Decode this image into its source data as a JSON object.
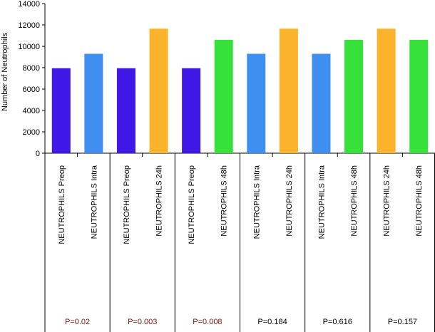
{
  "chart_data": {
    "type": "bar",
    "ylabel": "Number of Neutrophils",
    "ylim": [
      0,
      14000
    ],
    "yticks": [
      0,
      2000,
      4000,
      6000,
      8000,
      10000,
      12000,
      14000
    ],
    "bars": [
      {
        "label": "NEUTROPHILS Preop",
        "value": 7950,
        "color": "#3f17e6"
      },
      {
        "label": "NEUTROPHILS Intra",
        "value": 9300,
        "color": "#3f8ff0"
      },
      {
        "label": "NEUTROPHILS Preop",
        "value": 7950,
        "color": "#3f17e6"
      },
      {
        "label": "NEUTROPHILS 24h",
        "value": 11650,
        "color": "#fbb32c"
      },
      {
        "label": "NEUTROPHILS Preop",
        "value": 7950,
        "color": "#3f17e6"
      },
      {
        "label": "NEUTROPHILS 48h",
        "value": 10600,
        "color": "#36e23a"
      },
      {
        "label": "NEUTROPHILS Intra",
        "value": 9300,
        "color": "#3f8ff0"
      },
      {
        "label": "NEUTROPHILS 24h",
        "value": 11650,
        "color": "#fbb32c"
      },
      {
        "label": "NEUTROPHILS Intra",
        "value": 9300,
        "color": "#3f8ff0"
      },
      {
        "label": "NEUTROPHILS 48h",
        "value": 10600,
        "color": "#36e23a"
      },
      {
        "label": "NEUTROPHILS 24h",
        "value": 11650,
        "color": "#fbb32c"
      },
      {
        "label": "NEUTROPHILS 48h",
        "value": 10600,
        "color": "#36e23a"
      }
    ],
    "groups": [
      {
        "p_value": "P=0.02",
        "color": "#7a1010"
      },
      {
        "p_value": "P=0.003",
        "color": "#7a1010"
      },
      {
        "p_value": "P=0.008",
        "color": "#7a1010"
      },
      {
        "p_value": "P=0.184",
        "color": "#000000"
      },
      {
        "p_value": "P=0.616",
        "color": "#000000"
      },
      {
        "p_value": "P=0.157",
        "color": "#000000"
      }
    ]
  }
}
